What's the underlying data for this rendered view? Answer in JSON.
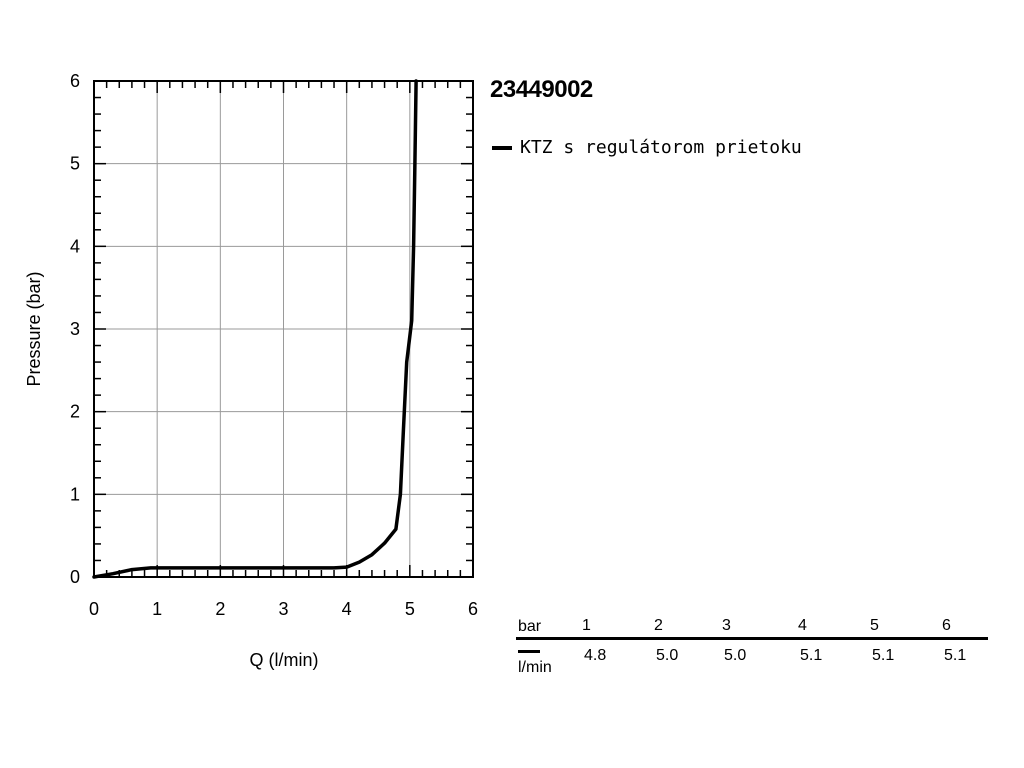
{
  "chart_data": {
    "type": "line",
    "title": "23449002",
    "xlabel": "Q (l/min)",
    "ylabel": "Pressure (bar)",
    "xlim": [
      0,
      6
    ],
    "ylim": [
      0,
      6
    ],
    "x_ticks": [
      "0",
      "1",
      "2",
      "3",
      "4",
      "5",
      "6"
    ],
    "y_ticks": [
      "0",
      "1",
      "2",
      "3",
      "4",
      "5",
      "6"
    ],
    "grid": true,
    "legend_position": "right",
    "series": [
      {
        "name": "KTZ s regulátorom prietoku",
        "color": "#000000",
        "points": [
          [
            0,
            0
          ],
          [
            0.3,
            0.04
          ],
          [
            0.6,
            0.09
          ],
          [
            0.9,
            0.11
          ],
          [
            1.2,
            0.11
          ],
          [
            2,
            0.11
          ],
          [
            3,
            0.11
          ],
          [
            3.8,
            0.11
          ],
          [
            4.0,
            0.12
          ],
          [
            4.2,
            0.18
          ],
          [
            4.4,
            0.27
          ],
          [
            4.6,
            0.41
          ],
          [
            4.78,
            0.58
          ],
          [
            4.85,
            1.0
          ],
          [
            4.9,
            1.8
          ],
          [
            4.95,
            2.6
          ],
          [
            5.03,
            3.1
          ],
          [
            5.06,
            4.0
          ],
          [
            5.08,
            5.0
          ],
          [
            5.1,
            6.0
          ]
        ]
      }
    ]
  },
  "table": {
    "row_header_top": "bar",
    "row_header_bottom": "l/min",
    "pressures": [
      "1",
      "2",
      "3",
      "4",
      "5",
      "6"
    ],
    "flows": [
      "4.8",
      "5.0",
      "5.0",
      "5.1",
      "5.1",
      "5.1"
    ]
  },
  "colors": {
    "line": "#000000",
    "grid": "#9a9a9a",
    "axis": "#000000"
  }
}
